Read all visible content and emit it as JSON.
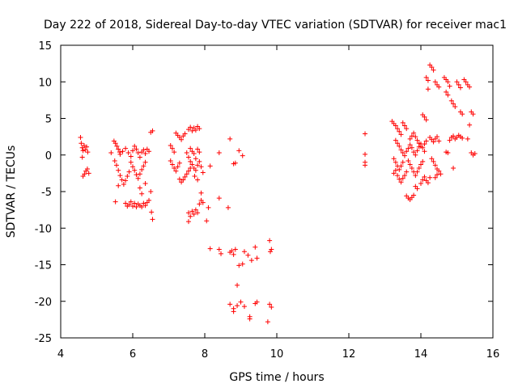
{
  "chart_data": {
    "type": "scatter",
    "title": "Day 222 of 2018, Sidereal Day-to-day VTEC variation (SDTVAR) for receiver mac1",
    "xlabel": "GPS time / hours",
    "ylabel": "SDTVAR / TECUs",
    "xlim": [
      4,
      16
    ],
    "ylim": [
      -25,
      15
    ],
    "xticks": [
      "4",
      "6",
      "8",
      "10",
      "12",
      "14",
      "16"
    ],
    "yticks": [
      "15",
      "10",
      "5",
      "0",
      "-5",
      "-10",
      "-15",
      "-20",
      "-25"
    ],
    "grid": false,
    "legend": "none",
    "marker": "plus",
    "color": "#ff0000",
    "series": [
      {
        "name": "SDTVAR",
        "points": [
          [
            4.55,
            2.4
          ],
          [
            4.57,
            1.6
          ],
          [
            4.6,
            1.0
          ],
          [
            4.62,
            0.6
          ],
          [
            4.65,
            1.3
          ],
          [
            4.68,
            0.7
          ],
          [
            4.72,
            1.1
          ],
          [
            4.75,
            0.4
          ],
          [
            4.6,
            -0.3
          ],
          [
            4.62,
            -2.9
          ],
          [
            4.66,
            -2.6
          ],
          [
            4.7,
            -2.2
          ],
          [
            4.74,
            -1.9
          ],
          [
            4.78,
            -2.5
          ],
          [
            5.4,
            0.3
          ],
          [
            5.48,
            1.9
          ],
          [
            5.52,
            1.6
          ],
          [
            5.56,
            1.2
          ],
          [
            5.6,
            0.8
          ],
          [
            5.64,
            0.4
          ],
          [
            5.5,
            -0.8
          ],
          [
            5.55,
            -1.4
          ],
          [
            5.6,
            -2.1
          ],
          [
            5.65,
            -2.8
          ],
          [
            5.7,
            -3.4
          ],
          [
            5.75,
            -4.0
          ],
          [
            5.8,
            -3.5
          ],
          [
            5.85,
            -2.9
          ],
          [
            5.9,
            -2.3
          ],
          [
            5.6,
            -4.2
          ],
          [
            5.52,
            -6.4
          ],
          [
            5.65,
            0.1
          ],
          [
            5.72,
            0.5
          ],
          [
            5.8,
            0.9
          ],
          [
            5.88,
            0.3
          ],
          [
            5.95,
            -0.2
          ],
          [
            6.0,
            0.6
          ],
          [
            6.05,
            1.2
          ],
          [
            6.1,
            0.8
          ],
          [
            6.15,
            0.3
          ],
          [
            6.2,
            -0.3
          ],
          [
            6.25,
            0.4
          ],
          [
            6.3,
            0.7
          ],
          [
            6.35,
            0.2
          ],
          [
            6.4,
            0.8
          ],
          [
            6.45,
            0.5
          ],
          [
            5.95,
            -1.0
          ],
          [
            6.0,
            -1.6
          ],
          [
            6.05,
            -2.1
          ],
          [
            6.1,
            -2.7
          ],
          [
            6.15,
            -3.2
          ],
          [
            6.2,
            -2.6
          ],
          [
            6.25,
            -2.0
          ],
          [
            6.3,
            -1.5
          ],
          [
            6.35,
            -1.0
          ],
          [
            5.8,
            -6.6
          ],
          [
            5.85,
            -7.0
          ],
          [
            5.9,
            -6.8
          ],
          [
            5.95,
            -6.4
          ],
          [
            6.0,
            -7.0
          ],
          [
            6.05,
            -6.6
          ],
          [
            6.1,
            -7.1
          ],
          [
            6.15,
            -6.7
          ],
          [
            6.2,
            -6.9
          ],
          [
            6.25,
            -7.1
          ],
          [
            6.3,
            -6.6
          ],
          [
            6.35,
            -6.9
          ],
          [
            6.4,
            -6.5
          ],
          [
            6.45,
            -6.2
          ],
          [
            6.2,
            -4.5
          ],
          [
            6.25,
            -5.3
          ],
          [
            6.35,
            -3.9
          ],
          [
            6.5,
            -5.0
          ],
          [
            6.52,
            -7.8
          ],
          [
            6.55,
            -8.8
          ],
          [
            6.55,
            3.3
          ],
          [
            6.5,
            3.1
          ],
          [
            7.05,
            1.3
          ],
          [
            7.1,
            0.9
          ],
          [
            7.15,
            0.4
          ],
          [
            7.05,
            -0.8
          ],
          [
            7.1,
            -1.3
          ],
          [
            7.15,
            -1.8
          ],
          [
            7.2,
            -2.2
          ],
          [
            7.25,
            -1.6
          ],
          [
            7.3,
            -1.1
          ],
          [
            7.2,
            3.0
          ],
          [
            7.25,
            2.7
          ],
          [
            7.3,
            2.4
          ],
          [
            7.35,
            2.1
          ],
          [
            7.4,
            2.6
          ],
          [
            7.45,
            2.9
          ],
          [
            7.3,
            -3.3
          ],
          [
            7.35,
            -3.7
          ],
          [
            7.4,
            -3.4
          ],
          [
            7.45,
            -3.0
          ],
          [
            7.5,
            -2.6
          ],
          [
            7.55,
            -2.2
          ],
          [
            7.6,
            -1.8
          ],
          [
            7.5,
            0.3
          ],
          [
            7.55,
            -0.3
          ],
          [
            7.6,
            0.9
          ],
          [
            7.65,
            0.5
          ],
          [
            7.7,
            0.2
          ],
          [
            7.75,
            -0.5
          ],
          [
            7.8,
            0.8
          ],
          [
            7.85,
            0.4
          ],
          [
            7.55,
            3.5
          ],
          [
            7.6,
            3.8
          ],
          [
            7.65,
            3.3
          ],
          [
            7.7,
            3.7
          ],
          [
            7.75,
            3.4
          ],
          [
            7.8,
            3.9
          ],
          [
            7.85,
            3.6
          ],
          [
            7.6,
            -0.9
          ],
          [
            7.65,
            -1.3
          ],
          [
            7.7,
            -1.8
          ],
          [
            7.75,
            -2.1
          ],
          [
            7.8,
            -1.4
          ],
          [
            7.85,
            -0.9
          ],
          [
            7.9,
            -1.6
          ],
          [
            7.95,
            -2.4
          ],
          [
            7.72,
            -2.9
          ],
          [
            7.8,
            -3.4
          ],
          [
            7.55,
            -7.9
          ],
          [
            7.6,
            -8.4
          ],
          [
            7.65,
            -7.7
          ],
          [
            7.7,
            -8.1
          ],
          [
            7.75,
            -7.5
          ],
          [
            7.8,
            -7.9
          ],
          [
            7.85,
            -6.7
          ],
          [
            7.9,
            -6.2
          ],
          [
            7.95,
            -6.5
          ],
          [
            7.55,
            -9.1
          ],
          [
            7.9,
            -5.2
          ],
          [
            8.05,
            -9.0
          ],
          [
            8.1,
            -7.2
          ],
          [
            8.15,
            -1.5
          ],
          [
            8.15,
            -12.8
          ],
          [
            8.4,
            -12.9
          ],
          [
            8.45,
            -13.5
          ],
          [
            8.4,
            -5.9
          ],
          [
            8.4,
            0.3
          ],
          [
            8.7,
            -13.3
          ],
          [
            8.75,
            -13.1
          ],
          [
            8.8,
            -13.6
          ],
          [
            8.85,
            -12.9
          ],
          [
            8.65,
            -7.2
          ],
          [
            8.7,
            2.2
          ],
          [
            8.8,
            -1.2
          ],
          [
            8.85,
            -1.1
          ],
          [
            8.95,
            0.6
          ],
          [
            9.05,
            -0.1
          ],
          [
            8.9,
            -17.8
          ],
          [
            8.95,
            -15.1
          ],
          [
            9.05,
            -14.9
          ],
          [
            9.1,
            -13.2
          ],
          [
            8.7,
            -20.4
          ],
          [
            8.8,
            -21.0
          ],
          [
            8.8,
            -21.4
          ],
          [
            8.9,
            -20.6
          ],
          [
            9.0,
            -20.1
          ],
          [
            9.1,
            -20.7
          ],
          [
            9.2,
            -13.7
          ],
          [
            9.3,
            -14.4
          ],
          [
            9.4,
            -12.6
          ],
          [
            9.45,
            -14.1
          ],
          [
            9.25,
            -22.1
          ],
          [
            9.25,
            -22.4
          ],
          [
            9.4,
            -20.3
          ],
          [
            9.45,
            -20.1
          ],
          [
            9.8,
            -11.7
          ],
          [
            9.82,
            -13.2
          ],
          [
            9.85,
            -12.9
          ],
          [
            9.8,
            -20.4
          ],
          [
            9.85,
            -20.8
          ],
          [
            9.75,
            -22.8
          ],
          [
            12.45,
            2.9
          ],
          [
            12.45,
            0.1
          ],
          [
            12.45,
            -1.0
          ],
          [
            12.45,
            -1.4
          ],
          [
            13.2,
            4.6
          ],
          [
            13.25,
            4.3
          ],
          [
            13.3,
            4.0
          ],
          [
            13.35,
            3.6
          ],
          [
            13.4,
            3.2
          ],
          [
            13.45,
            2.8
          ],
          [
            13.5,
            4.4
          ],
          [
            13.55,
            4.0
          ],
          [
            13.6,
            3.6
          ],
          [
            13.3,
            2.0
          ],
          [
            13.35,
            1.6
          ],
          [
            13.4,
            1.2
          ],
          [
            13.45,
            0.7
          ],
          [
            13.5,
            0.3
          ],
          [
            13.55,
            -0.1
          ],
          [
            13.6,
            0.5
          ],
          [
            13.65,
            0.9
          ],
          [
            13.7,
            1.4
          ],
          [
            13.75,
            1.0
          ],
          [
            13.8,
            0.4
          ],
          [
            13.85,
            0.0
          ],
          [
            13.9,
            0.6
          ],
          [
            13.95,
            1.1
          ],
          [
            14.0,
            1.5
          ],
          [
            14.05,
            1.0
          ],
          [
            14.1,
            0.5
          ],
          [
            13.25,
            -0.5
          ],
          [
            13.3,
            -1.0
          ],
          [
            13.35,
            -1.5
          ],
          [
            13.4,
            -2.0
          ],
          [
            13.45,
            -1.5
          ],
          [
            13.5,
            -1.0
          ],
          [
            13.25,
            -2.5
          ],
          [
            13.3,
            -2.1
          ],
          [
            13.35,
            -2.8
          ],
          [
            13.4,
            -3.3
          ],
          [
            13.45,
            -3.7
          ],
          [
            13.5,
            -3.2
          ],
          [
            13.55,
            -2.8
          ],
          [
            13.6,
            -2.3
          ],
          [
            13.7,
            2.2
          ],
          [
            13.75,
            2.6
          ],
          [
            13.8,
            3.0
          ],
          [
            13.85,
            2.5
          ],
          [
            13.9,
            2.0
          ],
          [
            13.95,
            1.6
          ],
          [
            14.0,
            1.2
          ],
          [
            13.65,
            -0.8
          ],
          [
            13.7,
            -1.3
          ],
          [
            13.75,
            -1.8
          ],
          [
            13.8,
            -2.3
          ],
          [
            13.85,
            -2.8
          ],
          [
            13.9,
            -2.3
          ],
          [
            13.95,
            -1.8
          ],
          [
            14.0,
            -1.3
          ],
          [
            14.05,
            -0.9
          ],
          [
            13.6,
            -5.6
          ],
          [
            13.65,
            -5.9
          ],
          [
            13.7,
            -6.1
          ],
          [
            13.75,
            -5.8
          ],
          [
            13.8,
            -5.5
          ],
          [
            13.85,
            -4.3
          ],
          [
            13.9,
            -4.6
          ],
          [
            14.0,
            -3.9
          ],
          [
            14.05,
            -3.4
          ],
          [
            14.1,
            -3.0
          ],
          [
            14.15,
            -3.5
          ],
          [
            14.2,
            -3.8
          ],
          [
            14.25,
            -3.1
          ],
          [
            14.1,
            1.5
          ],
          [
            14.15,
            1.9
          ],
          [
            14.05,
            5.5
          ],
          [
            14.1,
            5.2
          ],
          [
            14.15,
            4.8
          ],
          [
            14.2,
            9.0
          ],
          [
            14.25,
            12.3
          ],
          [
            14.3,
            12.0
          ],
          [
            14.35,
            11.6
          ],
          [
            14.4,
            10.0
          ],
          [
            14.45,
            9.6
          ],
          [
            14.5,
            9.3
          ],
          [
            14.15,
            10.6
          ],
          [
            14.2,
            10.2
          ],
          [
            14.25,
            2.4
          ],
          [
            14.3,
            2.1
          ],
          [
            14.35,
            1.8
          ],
          [
            14.4,
            2.2
          ],
          [
            14.45,
            2.5
          ],
          [
            14.5,
            1.9
          ],
          [
            14.3,
            -0.5
          ],
          [
            14.35,
            -0.9
          ],
          [
            14.4,
            -1.4
          ],
          [
            14.45,
            -1.9
          ],
          [
            14.5,
            -2.2
          ],
          [
            14.55,
            -2.6
          ],
          [
            14.4,
            -3.1
          ],
          [
            14.45,
            -2.7
          ],
          [
            14.65,
            10.6
          ],
          [
            14.7,
            10.3
          ],
          [
            14.75,
            10.0
          ],
          [
            14.8,
            9.4
          ],
          [
            14.7,
            8.6
          ],
          [
            14.75,
            8.2
          ],
          [
            14.7,
            0.4
          ],
          [
            14.75,
            0.3
          ],
          [
            14.8,
            2.0
          ],
          [
            14.85,
            2.4
          ],
          [
            14.9,
            2.6
          ],
          [
            14.95,
            2.2
          ],
          [
            15.0,
            2.4
          ],
          [
            14.85,
            7.4
          ],
          [
            14.9,
            7.0
          ],
          [
            14.95,
            6.6
          ],
          [
            15.0,
            10.0
          ],
          [
            15.05,
            9.6
          ],
          [
            15.1,
            9.2
          ],
          [
            14.9,
            -1.8
          ],
          [
            15.1,
            5.9
          ],
          [
            15.15,
            5.6
          ],
          [
            15.05,
            2.7
          ],
          [
            15.1,
            2.5
          ],
          [
            15.15,
            2.3
          ],
          [
            15.2,
            10.3
          ],
          [
            15.25,
            10.0
          ],
          [
            15.3,
            9.6
          ],
          [
            15.35,
            9.3
          ],
          [
            15.3,
            2.2
          ],
          [
            15.4,
            5.9
          ],
          [
            15.45,
            5.6
          ],
          [
            15.35,
            4.1
          ],
          [
            15.4,
            0.3
          ],
          [
            15.45,
            0.0
          ],
          [
            15.5,
            0.2
          ]
        ]
      }
    ]
  }
}
